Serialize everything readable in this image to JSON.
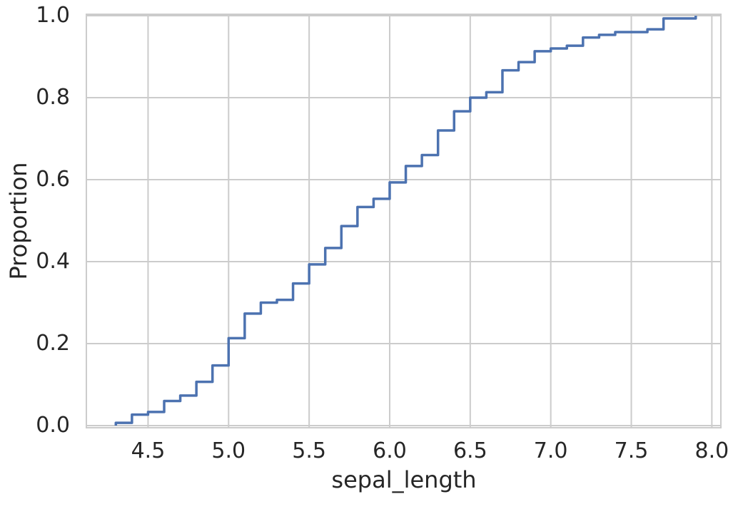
{
  "chart_data": {
    "type": "line",
    "subtype": "ecdf-step",
    "title": "",
    "xlabel": "sepal_length",
    "ylabel": "Proportion",
    "n": 150,
    "x": [
      4.3,
      4.4,
      4.5,
      4.6,
      4.7,
      4.8,
      4.9,
      5.0,
      5.1,
      5.2,
      5.3,
      5.4,
      5.5,
      5.6,
      5.7,
      5.8,
      5.9,
      6.0,
      6.1,
      6.2,
      6.3,
      6.4,
      6.5,
      6.6,
      6.7,
      6.8,
      6.9,
      7.0,
      7.1,
      7.2,
      7.3,
      7.4,
      7.6,
      7.7,
      7.9
    ],
    "cumulative_counts": [
      1,
      4,
      5,
      9,
      11,
      16,
      22,
      32,
      41,
      45,
      46,
      52,
      59,
      65,
      73,
      80,
      83,
      89,
      95,
      99,
      108,
      115,
      120,
      122,
      130,
      133,
      137,
      138,
      139,
      142,
      143,
      144,
      145,
      149,
      150
    ],
    "proportions": [
      0.00667,
      0.02667,
      0.03333,
      0.06,
      0.07333,
      0.10667,
      0.14667,
      0.21333,
      0.27333,
      0.3,
      0.30667,
      0.34667,
      0.39333,
      0.43333,
      0.48667,
      0.53333,
      0.55333,
      0.59333,
      0.63333,
      0.66,
      0.72,
      0.76667,
      0.8,
      0.81333,
      0.86667,
      0.88667,
      0.91333,
      0.92,
      0.92667,
      0.94667,
      0.95333,
      0.96,
      0.96667,
      0.99333,
      1.0
    ],
    "start_proportion": 0.0,
    "xlim": [
      4.117,
      8.056
    ],
    "ylim": [
      -0.0052,
      1.0035
    ],
    "xticks": {
      "values": [
        4.5,
        5.0,
        5.5,
        6.0,
        6.5,
        7.0,
        7.5,
        8.0
      ],
      "labels": [
        "4.5",
        "5.0",
        "5.5",
        "6.0",
        "6.5",
        "7.0",
        "7.5",
        "8.0"
      ]
    },
    "yticks": {
      "values": [
        0.0,
        0.2,
        0.4,
        0.6,
        0.8,
        1.0
      ],
      "labels": [
        "0.0",
        "0.2",
        "0.4",
        "0.6",
        "0.8",
        "1.0"
      ]
    },
    "grid": true,
    "legend": false,
    "line_color": "#4C72B0",
    "grid_color": "#CCCCCC",
    "spine_color": "#CCCCCC",
    "text_color": "#262626",
    "background": "#FFFFFF"
  }
}
